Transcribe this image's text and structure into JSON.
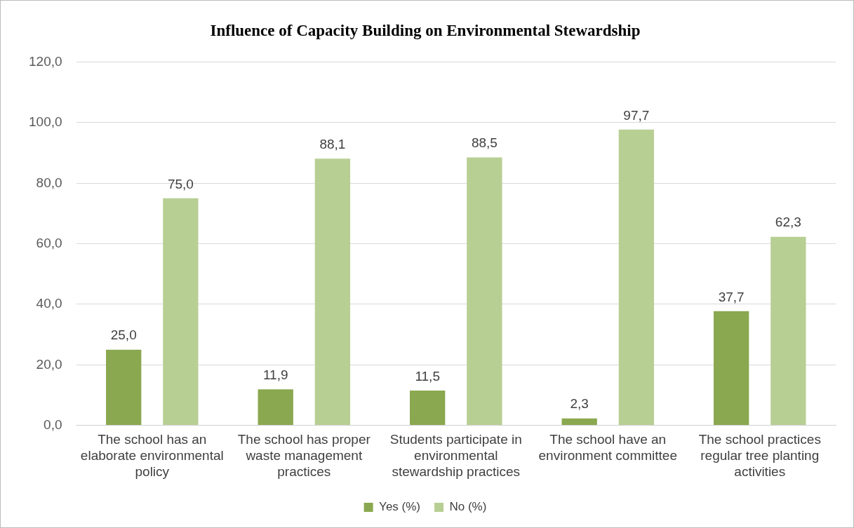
{
  "chart_data": {
    "type": "bar",
    "title": "Influence of Capacity Building on Environmental Stewardship",
    "categories": [
      "The school has an elaborate environmental policy",
      "The school has proper waste management practices",
      "Students participate in environmental stewardship practices",
      "The school have an environment committee",
      "The school practices regular tree planting activities"
    ],
    "series": [
      {
        "name": "Yes (%)",
        "color": "#8aa84f",
        "values": [
          25.0,
          11.9,
          11.5,
          2.3,
          37.7
        ],
        "value_labels": [
          "25,0",
          "11,9",
          "11,5",
          "2,3",
          "37,7"
        ]
      },
      {
        "name": "No (%)",
        "color": "#b8cf94",
        "values": [
          75.0,
          88.1,
          88.5,
          97.7,
          62.3
        ],
        "value_labels": [
          "75,0",
          "88,1",
          "88,5",
          "97,7",
          "62,3"
        ]
      }
    ],
    "ylim": [
      0,
      120
    ],
    "yticks": [
      {
        "value": 0,
        "label": "0,0"
      },
      {
        "value": 20,
        "label": "20,0"
      },
      {
        "value": 40,
        "label": "40,0"
      },
      {
        "value": 60,
        "label": "60,0"
      },
      {
        "value": 80,
        "label": "80,0"
      },
      {
        "value": 100,
        "label": "100,0"
      },
      {
        "value": 120,
        "label": "120,0"
      }
    ],
    "grid": "y",
    "legend": "bottom"
  }
}
